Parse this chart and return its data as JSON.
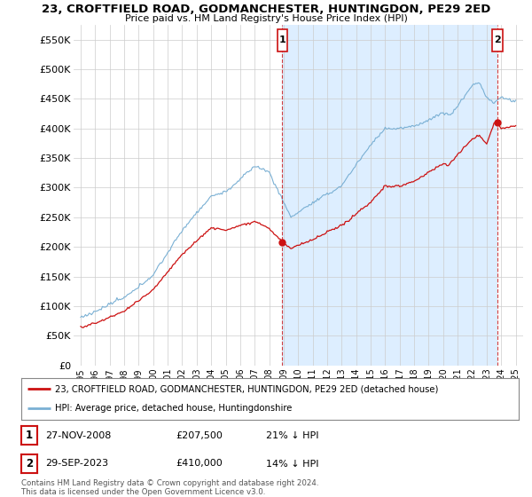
{
  "title": "23, CROFTFIELD ROAD, GODMANCHESTER, HUNTINGDON, PE29 2ED",
  "subtitle": "Price paid vs. HM Land Registry's House Price Index (HPI)",
  "ylabel_ticks": [
    "£0",
    "£50K",
    "£100K",
    "£150K",
    "£200K",
    "£250K",
    "£300K",
    "£350K",
    "£400K",
    "£450K",
    "£500K",
    "£550K"
  ],
  "ytick_values": [
    0,
    50000,
    100000,
    150000,
    200000,
    250000,
    300000,
    350000,
    400000,
    450000,
    500000,
    550000
  ],
  "ylim": [
    0,
    575000
  ],
  "xlim_start": 1994.5,
  "xlim_end": 2025.5,
  "hpi_color": "#7ab0d4",
  "price_color": "#cc1111",
  "shade_color": "#ddeeff",
  "marker1_date_x": 2008.9,
  "marker2_date_x": 2023.75,
  "sale1_price": 207500,
  "sale2_price": 410000,
  "sale1_label": "27-NOV-2008",
  "sale2_label": "29-SEP-2023",
  "sale1_pct": "21% ↓ HPI",
  "sale2_pct": "14% ↓ HPI",
  "legend_line1": "23, CROFTFIELD ROAD, GODMANCHESTER, HUNTINGDON, PE29 2ED (detached house)",
  "legend_line2": "HPI: Average price, detached house, Huntingdonshire",
  "footnote": "Contains HM Land Registry data © Crown copyright and database right 2024.\nThis data is licensed under the Open Government Licence v3.0.",
  "background_color": "#ffffff",
  "grid_color": "#cccccc"
}
